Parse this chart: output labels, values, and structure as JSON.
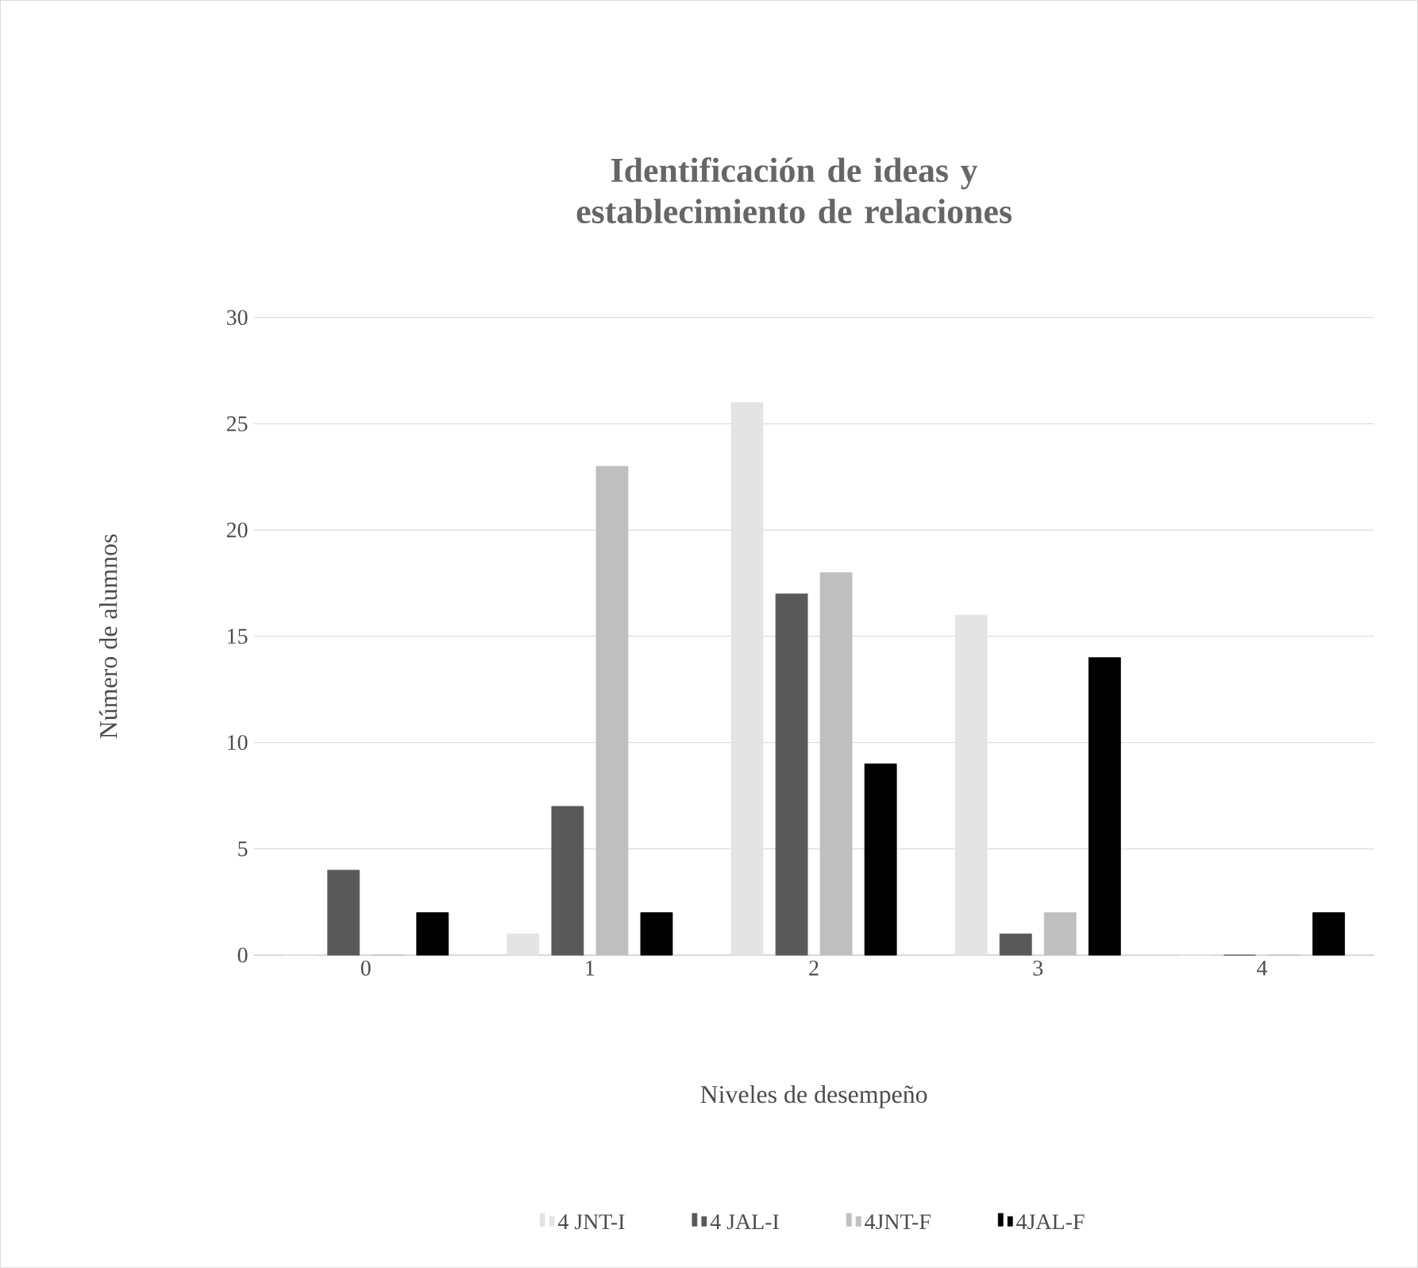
{
  "chart_data": {
    "type": "bar",
    "title": "Identificación de ideas y establecimiento de relaciones",
    "xlabel": "Niveles de desempeño",
    "ylabel": "Número de alumnos",
    "categories": [
      "0",
      "1",
      "2",
      "3",
      "4"
    ],
    "series": [
      {
        "name": "4 JNT-I",
        "color": "#e4e4e4",
        "values": [
          0,
          1,
          26,
          16,
          0
        ]
      },
      {
        "name": "4 JAL-I",
        "color": "#595959",
        "values": [
          4,
          7,
          17,
          1,
          0
        ]
      },
      {
        "name": "4JNT-F",
        "color": "#bfbfbf",
        "values": [
          0,
          23,
          18,
          2,
          0
        ]
      },
      {
        "name": "4JAL-F",
        "color": "#000000",
        "values": [
          2,
          2,
          9,
          14,
          2
        ]
      }
    ],
    "ylim": [
      0,
      30
    ],
    "yticks": [
      0,
      5,
      10,
      15,
      20,
      25,
      30
    ],
    "grid": "y",
    "legend": "bottom"
  }
}
